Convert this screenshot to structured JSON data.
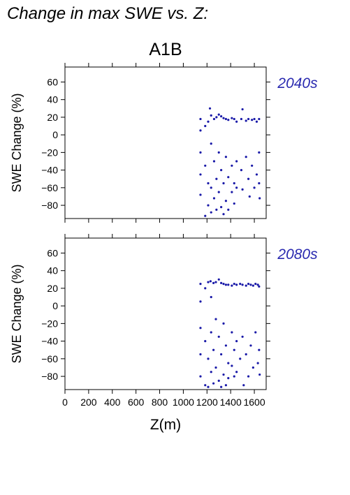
{
  "chart_data": {
    "type": "scatter",
    "figure_title": "Change in max SWE vs. Z:",
    "title": "A1B",
    "xlabel": "Z(m)",
    "ylabel": "SWE Change (%)",
    "xlim": [
      0,
      1700
    ],
    "ylim": [
      -95,
      77
    ],
    "xticks": [
      0,
      200,
      400,
      600,
      800,
      1000,
      1200,
      1400,
      1600
    ],
    "xtick_labels": [
      "0",
      "200",
      "400",
      "600",
      "800",
      "1000",
      "1200",
      "1400",
      "1600"
    ],
    "yticks": [
      60,
      40,
      20,
      0,
      -20,
      -40,
      -60,
      -80
    ],
    "ytick_labels": [
      "60",
      "40",
      "20",
      "0",
      "−20",
      "−40",
      "−60",
      "−80"
    ],
    "series_color": "#1a1aa8",
    "label_color": "#2a2ab0",
    "panels": [
      {
        "name": "2040s",
        "points": [
          {
            "x": 1145,
            "y": 18
          },
          {
            "x": 1145,
            "y": 5
          },
          {
            "x": 1145,
            "y": -20
          },
          {
            "x": 1145,
            "y": -45
          },
          {
            "x": 1145,
            "y": -68
          },
          {
            "x": 1185,
            "y": 10
          },
          {
            "x": 1185,
            "y": -35
          },
          {
            "x": 1185,
            "y": -92
          },
          {
            "x": 1210,
            "y": 15
          },
          {
            "x": 1210,
            "y": -55
          },
          {
            "x": 1210,
            "y": -80
          },
          {
            "x": 1225,
            "y": 30
          },
          {
            "x": 1235,
            "y": 22
          },
          {
            "x": 1235,
            "y": -10
          },
          {
            "x": 1235,
            "y": -60
          },
          {
            "x": 1235,
            "y": -88
          },
          {
            "x": 1260,
            "y": 18
          },
          {
            "x": 1260,
            "y": -30
          },
          {
            "x": 1260,
            "y": -72
          },
          {
            "x": 1280,
            "y": 20
          },
          {
            "x": 1280,
            "y": -50
          },
          {
            "x": 1280,
            "y": -85
          },
          {
            "x": 1300,
            "y": 23
          },
          {
            "x": 1300,
            "y": -20
          },
          {
            "x": 1300,
            "y": -65
          },
          {
            "x": 1320,
            "y": 21
          },
          {
            "x": 1320,
            "y": -40
          },
          {
            "x": 1320,
            "y": -82
          },
          {
            "x": 1340,
            "y": 19
          },
          {
            "x": 1340,
            "y": -55
          },
          {
            "x": 1340,
            "y": -90
          },
          {
            "x": 1360,
            "y": 18
          },
          {
            "x": 1360,
            "y": -25
          },
          {
            "x": 1360,
            "y": -75
          },
          {
            "x": 1380,
            "y": 17
          },
          {
            "x": 1380,
            "y": -48
          },
          {
            "x": 1380,
            "y": -85
          },
          {
            "x": 1410,
            "y": 19
          },
          {
            "x": 1410,
            "y": -35
          },
          {
            "x": 1410,
            "y": -65
          },
          {
            "x": 1430,
            "y": 18
          },
          {
            "x": 1430,
            "y": -55
          },
          {
            "x": 1430,
            "y": -78
          },
          {
            "x": 1450,
            "y": 15
          },
          {
            "x": 1450,
            "y": -30
          },
          {
            "x": 1450,
            "y": -60
          },
          {
            "x": 1490,
            "y": 18
          },
          {
            "x": 1490,
            "y": -40
          },
          {
            "x": 1500,
            "y": 29
          },
          {
            "x": 1500,
            "y": -62
          },
          {
            "x": 1530,
            "y": 16
          },
          {
            "x": 1530,
            "y": -25
          },
          {
            "x": 1550,
            "y": 18
          },
          {
            "x": 1550,
            "y": -50
          },
          {
            "x": 1560,
            "y": -70
          },
          {
            "x": 1580,
            "y": 17
          },
          {
            "x": 1580,
            "y": -35
          },
          {
            "x": 1600,
            "y": 18
          },
          {
            "x": 1600,
            "y": -60
          },
          {
            "x": 1620,
            "y": 15
          },
          {
            "x": 1620,
            "y": -45
          },
          {
            "x": 1640,
            "y": 18
          },
          {
            "x": 1640,
            "y": -20
          },
          {
            "x": 1640,
            "y": -55
          },
          {
            "x": 1645,
            "y": -72
          }
        ]
      },
      {
        "name": "2080s",
        "points": [
          {
            "x": 1145,
            "y": 25
          },
          {
            "x": 1145,
            "y": 5
          },
          {
            "x": 1145,
            "y": -25
          },
          {
            "x": 1145,
            "y": -55
          },
          {
            "x": 1145,
            "y": -80
          },
          {
            "x": 1185,
            "y": 20
          },
          {
            "x": 1185,
            "y": -40
          },
          {
            "x": 1185,
            "y": -90
          },
          {
            "x": 1210,
            "y": 27
          },
          {
            "x": 1210,
            "y": -60
          },
          {
            "x": 1210,
            "y": -92
          },
          {
            "x": 1230,
            "y": 28
          },
          {
            "x": 1235,
            "y": 10
          },
          {
            "x": 1235,
            "y": -30
          },
          {
            "x": 1235,
            "y": -75
          },
          {
            "x": 1255,
            "y": 26
          },
          {
            "x": 1255,
            "y": -50
          },
          {
            "x": 1255,
            "y": -88
          },
          {
            "x": 1275,
            "y": 27
          },
          {
            "x": 1275,
            "y": -15
          },
          {
            "x": 1275,
            "y": -70
          },
          {
            "x": 1300,
            "y": 30
          },
          {
            "x": 1300,
            "y": -35
          },
          {
            "x": 1300,
            "y": -85
          },
          {
            "x": 1320,
            "y": 26
          },
          {
            "x": 1320,
            "y": -55
          },
          {
            "x": 1320,
            "y": -92
          },
          {
            "x": 1340,
            "y": 25
          },
          {
            "x": 1340,
            "y": -20
          },
          {
            "x": 1340,
            "y": -78
          },
          {
            "x": 1360,
            "y": 24
          },
          {
            "x": 1360,
            "y": -45
          },
          {
            "x": 1360,
            "y": -90
          },
          {
            "x": 1380,
            "y": 24
          },
          {
            "x": 1380,
            "y": -65
          },
          {
            "x": 1380,
            "y": -82
          },
          {
            "x": 1410,
            "y": 23
          },
          {
            "x": 1410,
            "y": -30
          },
          {
            "x": 1410,
            "y": -68
          },
          {
            "x": 1430,
            "y": 25
          },
          {
            "x": 1430,
            "y": -50
          },
          {
            "x": 1430,
            "y": -80
          },
          {
            "x": 1450,
            "y": 24
          },
          {
            "x": 1450,
            "y": -40
          },
          {
            "x": 1450,
            "y": -75
          },
          {
            "x": 1480,
            "y": 25
          },
          {
            "x": 1480,
            "y": -60
          },
          {
            "x": 1500,
            "y": 24
          },
          {
            "x": 1500,
            "y": -35
          },
          {
            "x": 1510,
            "y": -90
          },
          {
            "x": 1530,
            "y": 23
          },
          {
            "x": 1530,
            "y": -55
          },
          {
            "x": 1550,
            "y": 25
          },
          {
            "x": 1550,
            "y": -80
          },
          {
            "x": 1570,
            "y": 24
          },
          {
            "x": 1570,
            "y": -45
          },
          {
            "x": 1590,
            "y": 23
          },
          {
            "x": 1590,
            "y": -70
          },
          {
            "x": 1610,
            "y": 25
          },
          {
            "x": 1610,
            "y": -30
          },
          {
            "x": 1630,
            "y": 24
          },
          {
            "x": 1630,
            "y": -65
          },
          {
            "x": 1640,
            "y": 22
          },
          {
            "x": 1640,
            "y": -50
          },
          {
            "x": 1645,
            "y": -78
          }
        ]
      }
    ]
  }
}
